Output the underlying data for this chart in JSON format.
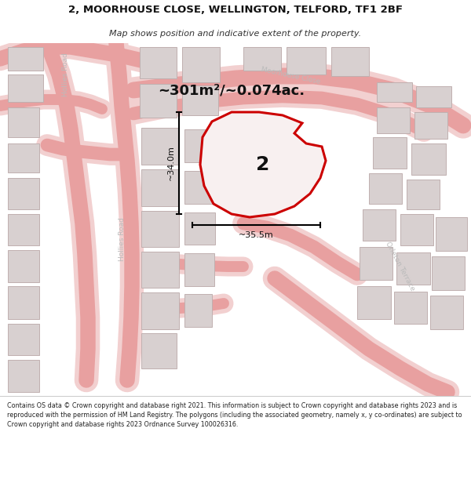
{
  "title_line1": "2, MOORHOUSE CLOSE, WELLINGTON, TELFORD, TF1 2BF",
  "title_line2": "Map shows position and indicative extent of the property.",
  "area_text": "~301m²/~0.074ac.",
  "label_number": "2",
  "dim_vertical": "~34.0m",
  "dim_horizontal": "~35.5m",
  "footnote": "Contains OS data © Crown copyright and database right 2021. This information is subject to Crown copyright and database rights 2023 and is reproduced with the permission of HM Land Registry. The polygons (including the associated geometry, namely x, y co-ordinates) are subject to Crown copyright and database rights 2023 Ordnance Survey 100026316.",
  "bg_color": "#ffffff",
  "map_bg": "#ffffff",
  "road_color": "#e8a0a0",
  "road_fill": "#f2d0d0",
  "building_fill": "#d8d0d0",
  "building_edge": "#c0b0b0",
  "highlight_color": "#cc0000",
  "road_label_color": "#aaaaaa",
  "title_bg": "#ffffff",
  "footnote_bg": "#ffffff",
  "separator_color": "#cccccc"
}
